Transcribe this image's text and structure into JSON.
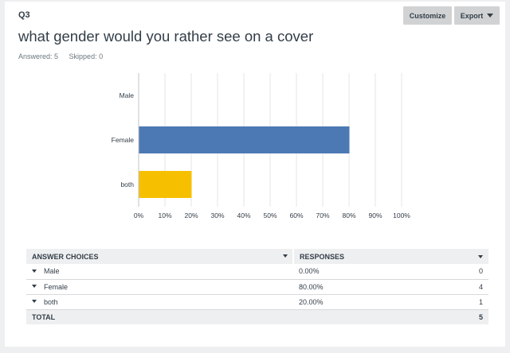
{
  "question": {
    "number": "Q3",
    "title": "what gender would you rather see on a cover",
    "answered": "Answered: 5",
    "skipped": "Skipped: 0"
  },
  "toolbar": {
    "customize_label": "Customize",
    "export_label": "Export"
  },
  "colors": {
    "female": "#4c79b4",
    "both": "#f6c000",
    "male": "#2f9ca9"
  },
  "chart_data": {
    "type": "bar",
    "orientation": "horizontal",
    "categories": [
      "Male",
      "Female",
      "both"
    ],
    "values": [
      0,
      80,
      20
    ],
    "x_ticks": [
      "0%",
      "10%",
      "20%",
      "30%",
      "40%",
      "50%",
      "60%",
      "70%",
      "80%",
      "90%",
      "100%"
    ],
    "xlim": [
      0,
      100
    ],
    "grid": true
  },
  "table": {
    "headers": {
      "choices": "ANSWER CHOICES",
      "responses": "RESPONSES"
    },
    "rows": [
      {
        "label": "Male",
        "percent": "0.00%",
        "count": "0"
      },
      {
        "label": "Female",
        "percent": "80.00%",
        "count": "4"
      },
      {
        "label": "both",
        "percent": "20.00%",
        "count": "1"
      }
    ],
    "total": {
      "label": "TOTAL",
      "count": "5"
    }
  }
}
